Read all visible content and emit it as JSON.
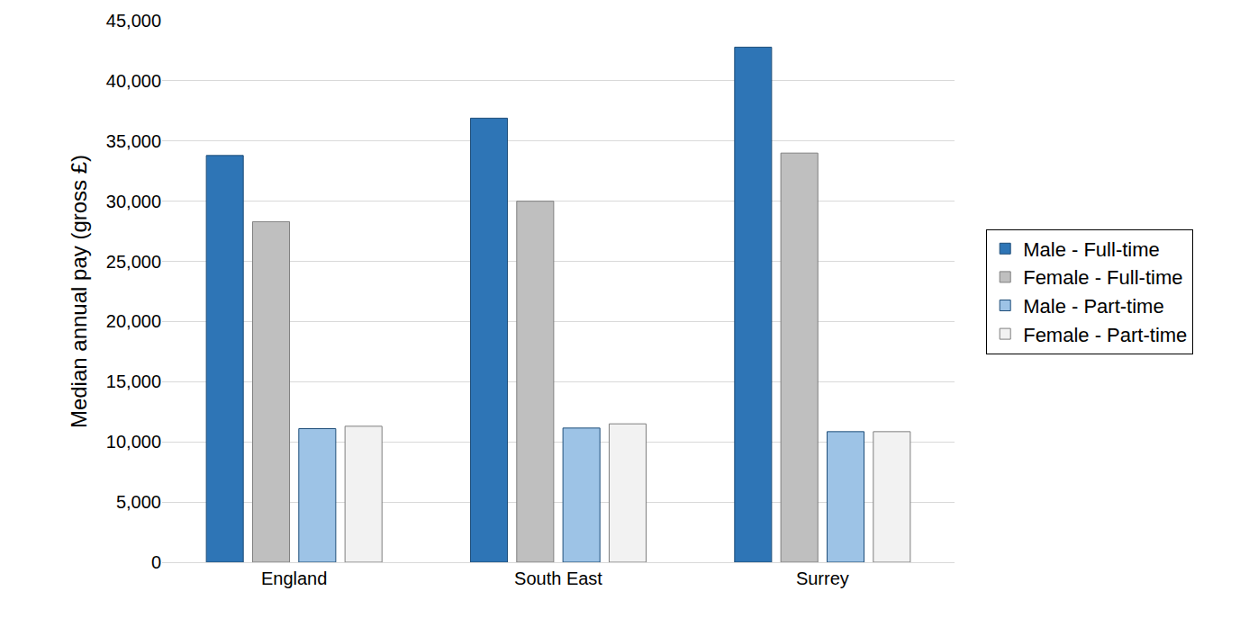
{
  "chart_data": {
    "type": "bar",
    "y_label": "Median annual pay (gross £)",
    "categories": [
      "England",
      "South East",
      "Surrey"
    ],
    "series": [
      {
        "name": "Male - Full-time",
        "color": "#2E75B6",
        "values": [
          33800,
          36900,
          42800
        ]
      },
      {
        "name": "Female - Full-time",
        "color": "#BFBFBF",
        "values": [
          28300,
          30000,
          34000
        ]
      },
      {
        "name": "Male - Part-time",
        "color": "#9DC3E6",
        "values": [
          11100,
          11150,
          10850
        ]
      },
      {
        "name": "Female - Part-time",
        "color": "#F2F2F2",
        "values": [
          11300,
          11500,
          10850
        ]
      }
    ],
    "ylim": [
      0,
      45000
    ],
    "yticks": [
      0,
      {
        "value": 5000,
        "label": "5,000"
      },
      {
        "value": 10000,
        "label": "10,000"
      },
      {
        "value": 15000,
        "label": "15,000"
      },
      {
        "value": 20000,
        "label": "20,000"
      },
      {
        "value": 25000,
        "label": "25,000"
      },
      {
        "value": 30000,
        "label": "30,000"
      },
      {
        "value": 35000,
        "label": "35,000"
      },
      {
        "value": 40000,
        "label": "40,000"
      },
      {
        "value": 45000,
        "label": "45,000"
      }
    ],
    "grid": true,
    "legend": "right"
  }
}
